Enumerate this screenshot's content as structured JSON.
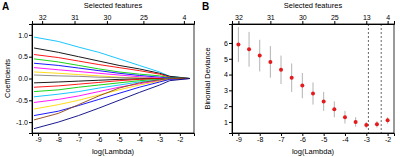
{
  "chart_data": [
    {
      "type": "line",
      "title": "A",
      "xlabel": "log(Lambda)",
      "ylabel": "Coefficients",
      "top_label": "Selected features",
      "x": [
        -9.2,
        -8,
        -7,
        -6,
        -5,
        -4,
        -3,
        -2.5,
        -1.5
      ],
      "xlim": [
        -9.3,
        -1.3
      ],
      "xticks": [
        -9,
        -8,
        -7,
        -6,
        -5,
        -4,
        -3,
        -2
      ],
      "top_ticks": [
        {
          "value": -8.8,
          "label": "32"
        },
        {
          "value": -7.2,
          "label": "31"
        },
        {
          "value": -5.6,
          "label": "30"
        },
        {
          "value": -3.8,
          "label": "25"
        },
        {
          "value": -1.8,
          "label": "4"
        }
      ],
      "ylim": [
        -1.25,
        1.25
      ],
      "yticks": [
        {
          "value": -1,
          "label": "-1.0"
        },
        {
          "value": -0.5,
          "label": "-0.5"
        },
        {
          "value": 0,
          "label": "0.0"
        },
        {
          "value": 0.5,
          "label": "0.5"
        },
        {
          "value": 1,
          "label": "1.0"
        }
      ],
      "grid": false,
      "series": [
        {
          "color": "#00bfff",
          "values": [
            0.95,
            0.85,
            0.72,
            0.6,
            0.45,
            0.3,
            0.15,
            0.05,
            0
          ]
        },
        {
          "color": "#000000",
          "values": [
            0.7,
            0.6,
            0.5,
            0.4,
            0.3,
            0.22,
            0.12,
            0.05,
            0
          ]
        },
        {
          "color": "#ff0000",
          "values": [
            0.55,
            0.48,
            0.4,
            0.32,
            0.25,
            0.18,
            0.1,
            0.03,
            0
          ]
        },
        {
          "color": "#00cd00",
          "values": [
            0.45,
            0.38,
            0.3,
            0.22,
            0.15,
            0.1,
            0.06,
            0.02,
            0
          ]
        },
        {
          "color": "#0000ff",
          "values": [
            0.35,
            0.3,
            0.24,
            0.18,
            0.12,
            0.07,
            0.03,
            0.01,
            0
          ]
        },
        {
          "color": "#ff00ff",
          "values": [
            0.25,
            0.2,
            0.16,
            0.12,
            0.08,
            0.04,
            0.01,
            0,
            0
          ]
        },
        {
          "color": "#ffd700",
          "values": [
            0.15,
            0.12,
            0.09,
            0.06,
            0.03,
            0.01,
            0,
            0,
            0
          ]
        },
        {
          "color": "#808080",
          "values": [
            0.08,
            0.06,
            0.05,
            0.03,
            0.02,
            0.01,
            0,
            0,
            0
          ]
        },
        {
          "color": "#000000",
          "values": [
            -0.1,
            -0.08,
            -0.06,
            -0.04,
            -0.02,
            -0.01,
            0,
            0,
            0
          ]
        },
        {
          "color": "#ff0000",
          "values": [
            -0.2,
            -0.17,
            -0.13,
            -0.09,
            -0.05,
            -0.02,
            0,
            0,
            0
          ]
        },
        {
          "color": "#00cd00",
          "values": [
            -0.3,
            -0.26,
            -0.2,
            -0.15,
            -0.1,
            -0.05,
            -0.02,
            0,
            0
          ]
        },
        {
          "color": "#00bfff",
          "values": [
            -0.42,
            -0.36,
            -0.3,
            -0.22,
            -0.15,
            -0.08,
            -0.03,
            0,
            0
          ]
        },
        {
          "color": "#ff00ff",
          "values": [
            -0.55,
            -0.48,
            -0.4,
            -0.3,
            -0.2,
            -0.12,
            -0.05,
            -0.01,
            0
          ]
        },
        {
          "color": "#ffd700",
          "values": [
            -0.7,
            -0.6,
            -0.5,
            -0.38,
            -0.26,
            -0.15,
            -0.06,
            -0.01,
            0
          ]
        },
        {
          "color": "#0000ff",
          "values": [
            -0.85,
            -0.75,
            -0.62,
            -0.48,
            -0.34,
            -0.2,
            -0.08,
            -0.02,
            0
          ]
        },
        {
          "color": "#8b4513",
          "values": [
            -0.95,
            -0.8,
            -0.6,
            -0.4,
            -0.22,
            -0.1,
            -0.03,
            0,
            0
          ]
        },
        {
          "color": "#000080",
          "values": [
            -1.15,
            -1.0,
            -0.85,
            -0.68,
            -0.5,
            -0.32,
            -0.15,
            -0.05,
            0
          ]
        }
      ]
    },
    {
      "type": "scatter",
      "title": "B",
      "xlabel": "log(Lambda)",
      "ylabel": "Binomial Deviance",
      "top_label": "Selected features",
      "x": [
        -9,
        -8.5,
        -8,
        -7.5,
        -7,
        -6.5,
        -6,
        -5.5,
        -5,
        -4.5,
        -4,
        -3.5,
        -3,
        -2.5,
        -2
      ],
      "xlim": [
        -9.3,
        -1.7
      ],
      "xticks": [
        -9,
        -8,
        -7,
        -6,
        -5,
        -4,
        -3,
        -2
      ],
      "top_ticks": [
        {
          "value": -9,
          "label": "32"
        },
        {
          "value": -7.5,
          "label": "31"
        },
        {
          "value": -6,
          "label": "30"
        },
        {
          "value": -4.5,
          "label": "25"
        },
        {
          "value": -3,
          "label": "13"
        },
        {
          "value": -2,
          "label": "4"
        }
      ],
      "ylim": [
        0.3,
        7.2
      ],
      "yticks": [
        1,
        2,
        3,
        4,
        5,
        6
      ],
      "grid": false,
      "vlines": [
        -2.9,
        -2.3
      ],
      "series": [
        {
          "color": "#e41a1c",
          "marker": "circle",
          "error_color": "#a0a0a0",
          "values": [
            5.9,
            5.6,
            5.2,
            4.8,
            4.3,
            3.8,
            3.3,
            2.8,
            2.3,
            1.8,
            1.3,
            1.0,
            0.8,
            0.85,
            1.1
          ],
          "error": [
            1.1,
            1.1,
            1.0,
            1.0,
            0.9,
            0.9,
            0.8,
            0.7,
            0.6,
            0.5,
            0.4,
            0.3,
            0.2,
            0.2,
            0.2
          ]
        }
      ]
    }
  ]
}
